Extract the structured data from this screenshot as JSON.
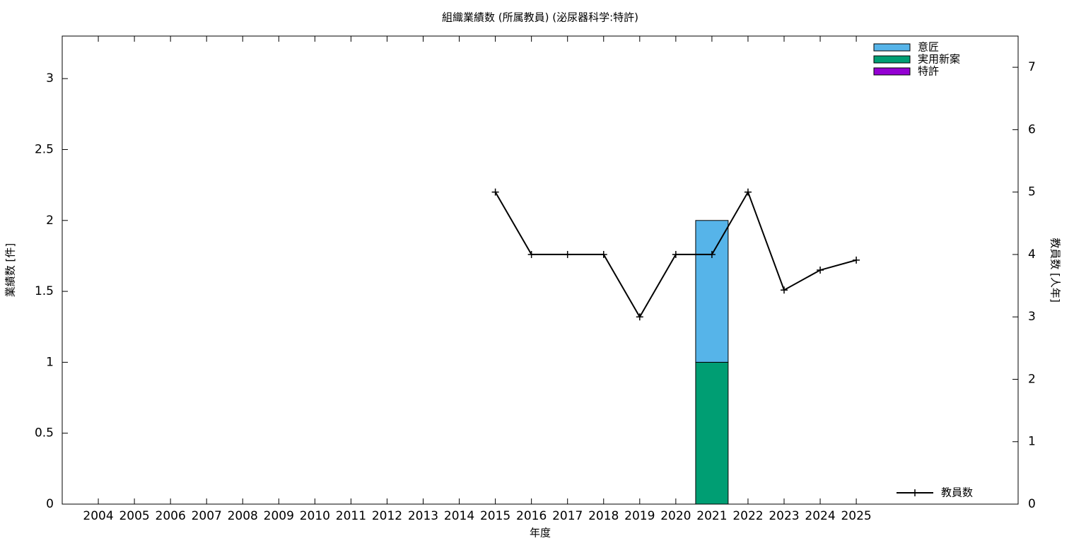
{
  "chart_data": {
    "type": "bar",
    "title": "組織業績数 (所属教員) (泌尿器科学:特許)",
    "x_label": "年度",
    "y_label": "業績数 [件]",
    "y2_label": "教員数 [人年]",
    "categories": [
      "2004",
      "2005",
      "2006",
      "2007",
      "2008",
      "2009",
      "2010",
      "2011",
      "2012",
      "2013",
      "2014",
      "2015",
      "2016",
      "2017",
      "2018",
      "2019",
      "2020",
      "2021",
      "2022",
      "2023",
      "2024",
      "2025"
    ],
    "series": [
      {
        "name": "意匠",
        "color": "#56b4e9",
        "values": [
          0,
          0,
          0,
          0,
          0,
          0,
          0,
          0,
          0,
          0,
          0,
          0,
          0,
          0,
          0,
          0,
          0,
          1,
          0,
          0,
          0,
          0
        ]
      },
      {
        "name": "実用新案",
        "color": "#009e73",
        "values": [
          0,
          0,
          0,
          0,
          0,
          0,
          0,
          0,
          0,
          0,
          0,
          0,
          0,
          0,
          0,
          0,
          0,
          1,
          0,
          0,
          0,
          0
        ]
      },
      {
        "name": "特許",
        "color": "#9400d3",
        "values": [
          0,
          0,
          0,
          0,
          0,
          0,
          0,
          0,
          0,
          0,
          0,
          0,
          0,
          0,
          0,
          0,
          0,
          0,
          0,
          0,
          0,
          0
        ]
      },
      {
        "name": "教員数",
        "color": "#000000",
        "type": "line",
        "axis": "y2",
        "values": [
          null,
          null,
          null,
          null,
          null,
          null,
          null,
          null,
          null,
          null,
          null,
          5,
          4,
          4,
          4,
          3,
          4,
          4,
          5,
          3.43,
          3.75,
          3.91
        ]
      }
    ],
    "ylim": [
      0,
      3.3
    ],
    "yticks": [
      0,
      0.5,
      1,
      1.5,
      2,
      2.5,
      3
    ],
    "y2lim": [
      0,
      7.5
    ],
    "y2ticks": [
      0,
      1,
      2,
      3,
      4,
      5,
      6,
      7
    ]
  }
}
